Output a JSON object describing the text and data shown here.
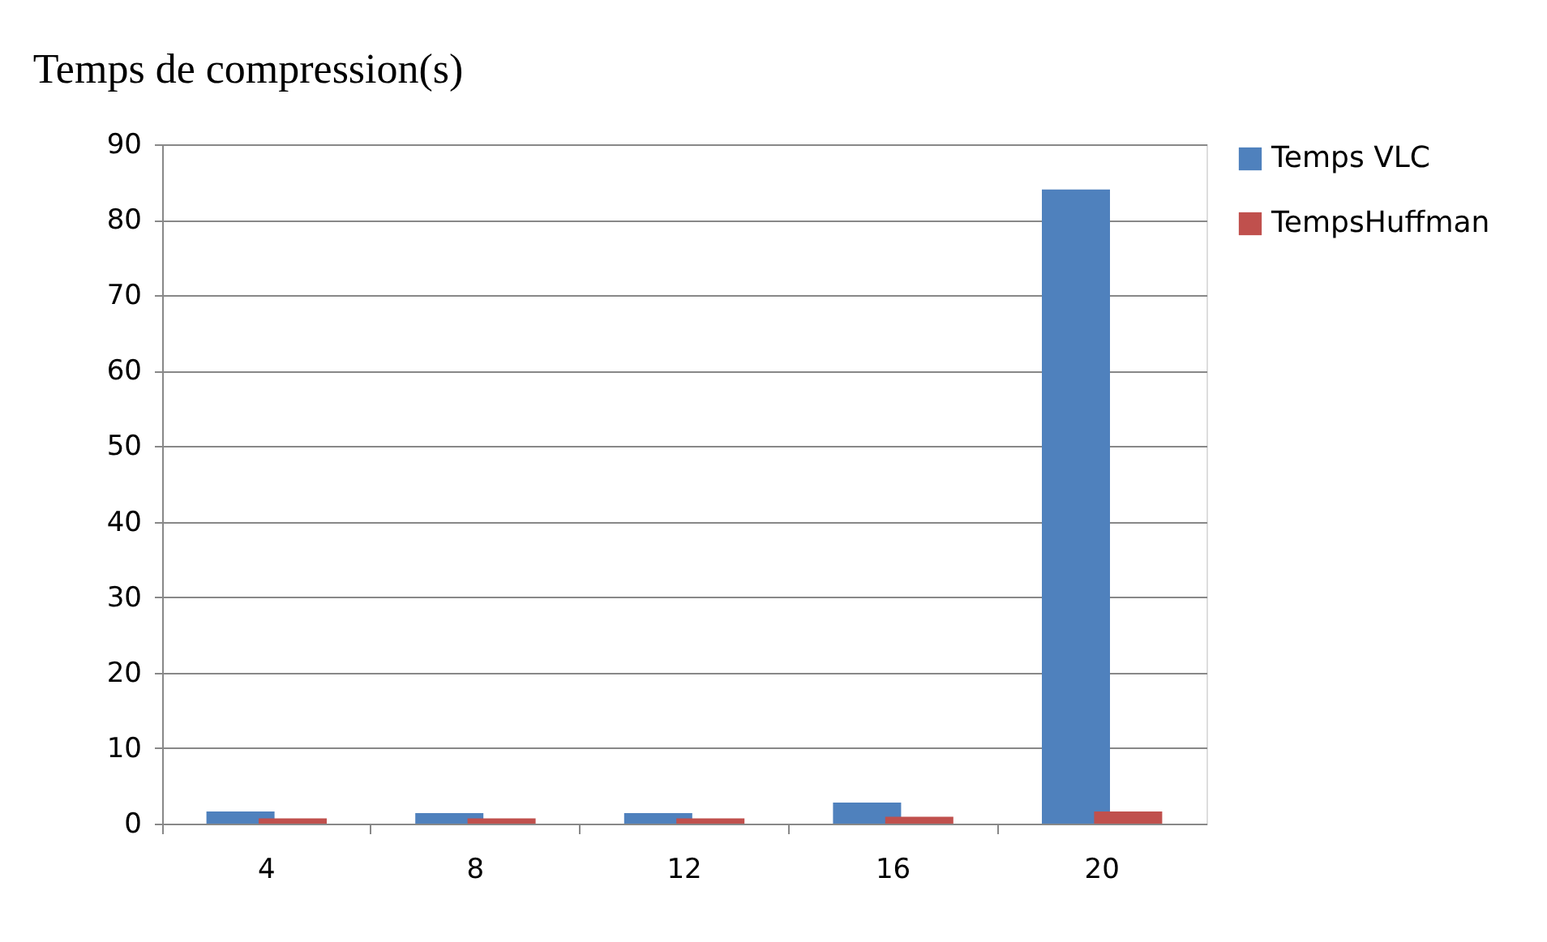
{
  "chart_data": {
    "type": "bar",
    "title": "Temps de compression(s)",
    "categories": [
      "4",
      "8",
      "12",
      "16",
      "20"
    ],
    "series": [
      {
        "name": "Temps VLC",
        "color": "#4f81bd",
        "values": [
          1.6,
          1.4,
          1.4,
          2.8,
          84
        ]
      },
      {
        "name": "TempsHuffman",
        "color": "#c0504d",
        "values": [
          0.7,
          0.7,
          0.7,
          0.9,
          1.6
        ]
      }
    ],
    "ylim": [
      0,
      90
    ],
    "yticks": [
      0,
      10,
      20,
      30,
      40,
      50,
      60,
      70,
      80,
      90
    ],
    "grid": "y",
    "legend": "right"
  }
}
